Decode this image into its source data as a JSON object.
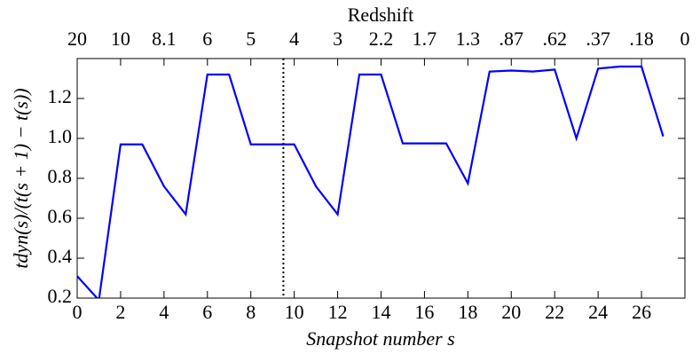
{
  "chart_data": {
    "type": "line",
    "xlabel": "Snapshot number s",
    "ylabel": "tdyn(s)/(t(s + 1) − t(s))",
    "x2label": "Redshift",
    "x": [
      0,
      1,
      2,
      3,
      4,
      5,
      6,
      7,
      8,
      9,
      10,
      11,
      12,
      13,
      14,
      15,
      16,
      17,
      18,
      19,
      20,
      21,
      22,
      23,
      24,
      25,
      26,
      27
    ],
    "series": [
      {
        "color": "#0000ff",
        "values": [
          0.31,
          0.19,
          0.97,
          0.97,
          0.76,
          0.62,
          1.32,
          1.32,
          0.97,
          0.97,
          0.97,
          0.76,
          0.62,
          1.32,
          1.32,
          0.975,
          0.975,
          0.975,
          0.775,
          1.335,
          1.34,
          1.335,
          1.345,
          1.0,
          1.35,
          1.36,
          1.36,
          1.01
        ]
      }
    ],
    "xlim": [
      0,
      28
    ],
    "xticks": [
      0,
      2,
      4,
      6,
      8,
      10,
      12,
      14,
      16,
      18,
      20,
      22,
      24,
      26
    ],
    "ylim": [
      0.2,
      1.4
    ],
    "yticks": [
      0.2,
      0.4,
      0.6,
      0.8,
      {
        "value": 1.0,
        "label": "1.0"
      },
      1.2
    ],
    "x2ticks": [
      {
        "value": 0,
        "label": "20"
      },
      {
        "value": 2,
        "label": "10"
      },
      {
        "value": 4,
        "label": "8.1"
      },
      {
        "value": 6,
        "label": "6"
      },
      {
        "value": 8,
        "label": "5"
      },
      {
        "value": 10,
        "label": "4"
      },
      {
        "value": 12,
        "label": "3"
      },
      {
        "value": 14,
        "label": "2.2"
      },
      {
        "value": 16,
        "label": "1.7"
      },
      {
        "value": 18,
        "label": "1.3"
      },
      {
        "value": 20,
        "label": ".87"
      },
      {
        "value": 22,
        "label": ".62"
      },
      {
        "value": 24,
        "label": ".37"
      },
      {
        "value": 26,
        "label": ".18"
      },
      {
        "value": 28,
        "label": "0"
      }
    ],
    "vline": 9.5
  }
}
